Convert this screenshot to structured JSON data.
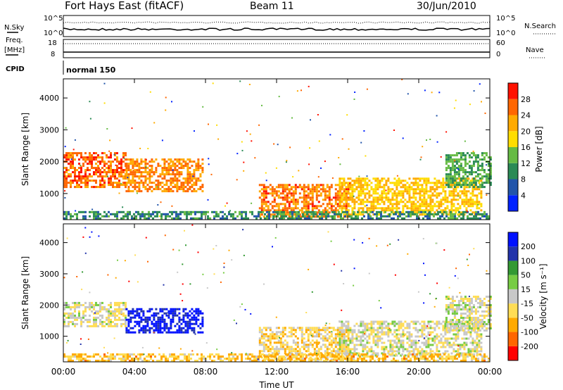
{
  "header": {
    "title": "Fort Hays East (fitACF)",
    "beam": "Beam 11",
    "date": "30/Jun/2010"
  },
  "noise_panel": {
    "left_label": "N.Sky",
    "right_label": "N.Search",
    "left_ticks": [
      "10^5",
      "10^0"
    ],
    "right_ticks": [
      "10^5",
      "10^0"
    ]
  },
  "freq_panel": {
    "left_label_line1": "Freq.",
    "left_label_line2": "[MHz]",
    "right_label": "Nave",
    "left_ticks": [
      "18",
      "8"
    ],
    "right_ticks": [
      "60",
      "0"
    ]
  },
  "cpid": {
    "label": "CPID",
    "value": "normal 150"
  },
  "time_axis": {
    "ticks": [
      "00:00",
      "04:00",
      "08:00",
      "12:00",
      "16:00",
      "20:00",
      "00:00"
    ],
    "label": "Time UT"
  },
  "colors": {
    "power_scale": [
      "#0022ff",
      "#2255aa",
      "#2a8a55",
      "#66bb44",
      "#ffdd00",
      "#ffaa00",
      "#ff6600",
      "#ff1100"
    ],
    "velocity_scale": [
      "#ff0000",
      "#ff6600",
      "#ffaa00",
      "#ffdd55",
      "#c8c8c8",
      "#77cc44",
      "#339933",
      "#2233aa",
      "#0011ff"
    ]
  },
  "chart_data": [
    {
      "type": "heatmap",
      "quantity": "Power",
      "ylabel": "Slant Range [km]",
      "xlabel": "Time UT",
      "xlim": [
        "00:00",
        "24:00"
      ],
      "ylim": [
        180,
        4600
      ],
      "y_ticks": [
        1000,
        2000,
        3000,
        4000
      ],
      "colorbar": {
        "label": "Power [dB]",
        "ticks": [
          "4",
          "8",
          "12",
          "16",
          "20",
          "24",
          "28"
        ],
        "range": [
          0,
          32
        ]
      },
      "echo_regions": [
        {
          "start_hour": 0.0,
          "end_hour": 3.5,
          "range_min": 1200,
          "range_max": 2300,
          "level": 26
        },
        {
          "start_hour": 3.5,
          "end_hour": 7.8,
          "range_min": 1100,
          "range_max": 2100,
          "level": 24
        },
        {
          "start_hour": 11.0,
          "end_hour": 16.0,
          "range_min": 250,
          "range_max": 1300,
          "level": 25
        },
        {
          "start_hour": 15.5,
          "end_hour": 23.5,
          "range_min": 350,
          "range_max": 1500,
          "level": 20
        },
        {
          "start_hour": 21.5,
          "end_hour": 24.0,
          "range_min": 1200,
          "range_max": 2300,
          "level": 12
        },
        {
          "start_hour": 0.0,
          "end_hour": 24.0,
          "range_min": 200,
          "range_max": 450,
          "level": 10
        }
      ]
    },
    {
      "type": "heatmap",
      "quantity": "Velocity",
      "ylabel": "Slant Range [km]",
      "xlabel": "Time UT",
      "xlim": [
        "00:00",
        "24:00"
      ],
      "ylim": [
        180,
        4600
      ],
      "y_ticks": [
        1000,
        2000,
        3000,
        4000
      ],
      "colorbar": {
        "label": "Velocity [m s⁻¹]",
        "ticks": [
          "200",
          "100",
          "50",
          "15",
          "-15",
          "-50",
          "-100",
          "-200"
        ],
        "range": [
          -250,
          250
        ]
      },
      "echo_regions": [
        {
          "start_hour": 0.0,
          "end_hour": 3.5,
          "range_min": 1300,
          "range_max": 2100,
          "level": -20
        },
        {
          "start_hour": 3.5,
          "end_hour": 7.8,
          "range_min": 1100,
          "range_max": 1900,
          "level": 220
        },
        {
          "start_hour": 11.0,
          "end_hour": 16.0,
          "range_min": 250,
          "range_max": 1300,
          "level": -60
        },
        {
          "start_hour": 15.5,
          "end_hour": 23.5,
          "range_min": 350,
          "range_max": 1500,
          "level": -10
        },
        {
          "start_hour": 21.5,
          "end_hour": 24.0,
          "range_min": 1200,
          "range_max": 2300,
          "level": -5
        },
        {
          "start_hour": 0.0,
          "end_hour": 24.0,
          "range_min": 200,
          "range_max": 450,
          "level": -80
        }
      ]
    }
  ]
}
